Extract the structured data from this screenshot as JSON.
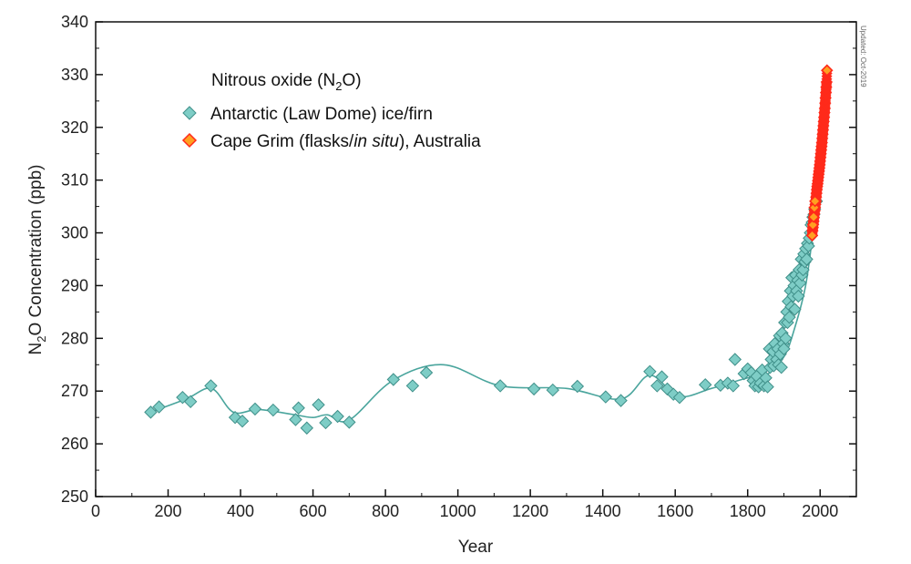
{
  "chart_data": {
    "type": "scatter",
    "title": "Nitrous oxide (N2O)",
    "title_main": "Nitrous oxide (N",
    "title_sub": "2",
    "title_end": "O)",
    "xlabel": "Year",
    "ylabel_main": "N",
    "ylabel_sub": "2",
    "ylabel_end": "O Concentration  (ppb)",
    "xlim": [
      0,
      2100
    ],
    "ylim": [
      250,
      340
    ],
    "xticks": [
      0,
      200,
      400,
      600,
      800,
      1000,
      1200,
      1400,
      1600,
      1800,
      2000
    ],
    "yticks": [
      250,
      260,
      270,
      280,
      290,
      300,
      310,
      320,
      330,
      340
    ],
    "note": "Updated: Oct-2019",
    "legend_position": "top-left",
    "series": [
      {
        "name": "Antarctic (Law Dome) ice/firn",
        "color": "#7ecdc6",
        "edge": "#3f8f89",
        "points": [
          [
            152,
            266
          ],
          [
            175,
            267
          ],
          [
            240,
            268.8
          ],
          [
            262,
            268
          ],
          [
            318,
            271
          ],
          [
            385,
            265
          ],
          [
            405,
            264.3
          ],
          [
            440,
            266.6
          ],
          [
            490,
            266.4
          ],
          [
            552,
            264.6
          ],
          [
            560,
            266.8
          ],
          [
            583,
            263
          ],
          [
            615,
            267.4
          ],
          [
            635,
            264
          ],
          [
            668,
            265.2
          ],
          [
            700,
            264.1
          ],
          [
            822,
            272.2
          ],
          [
            875,
            271
          ],
          [
            913,
            273.5
          ],
          [
            1117,
            271
          ],
          [
            1210,
            270.4
          ],
          [
            1262,
            270.2
          ],
          [
            1330,
            270.9
          ],
          [
            1408,
            268.9
          ],
          [
            1450,
            268.2
          ],
          [
            1530,
            273.7
          ],
          [
            1550,
            271
          ],
          [
            1563,
            272.7
          ],
          [
            1578,
            270.4
          ],
          [
            1595,
            269.4
          ],
          [
            1612,
            268.8
          ],
          [
            1683,
            271.2
          ],
          [
            1725,
            271.1
          ],
          [
            1745,
            271.5
          ],
          [
            1760,
            271
          ],
          [
            1765,
            276
          ],
          [
            1790,
            273.3
          ],
          [
            1800,
            274.2
          ],
          [
            1810,
            273.5
          ],
          [
            1815,
            272
          ],
          [
            1820,
            271
          ],
          [
            1825,
            272.8
          ],
          [
            1830,
            270.8
          ],
          [
            1835,
            271.5
          ],
          [
            1840,
            274
          ],
          [
            1845,
            271
          ],
          [
            1850,
            272.5
          ],
          [
            1855,
            270.8
          ],
          [
            1860,
            278
          ],
          [
            1862,
            274.5
          ],
          [
            1865,
            276
          ],
          [
            1870,
            277.5
          ],
          [
            1872,
            274.8
          ],
          [
            1875,
            279
          ],
          [
            1880,
            276
          ],
          [
            1883,
            278
          ],
          [
            1885,
            275
          ],
          [
            1888,
            280.5
          ],
          [
            1890,
            277
          ],
          [
            1893,
            274.5
          ],
          [
            1895,
            281
          ],
          [
            1898,
            279
          ],
          [
            1900,
            278
          ],
          [
            1902,
            283
          ],
          [
            1905,
            280
          ],
          [
            1908,
            285
          ],
          [
            1910,
            283
          ],
          [
            1912,
            287
          ],
          [
            1915,
            284
          ],
          [
            1918,
            289
          ],
          [
            1920,
            286
          ],
          [
            1922,
            291.5
          ],
          [
            1925,
            288
          ],
          [
            1928,
            290
          ],
          [
            1930,
            285.5
          ],
          [
            1932,
            292
          ],
          [
            1935,
            289
          ],
          [
            1938,
            291
          ],
          [
            1940,
            288
          ],
          [
            1942,
            293
          ],
          [
            1945,
            290.5
          ],
          [
            1948,
            295
          ],
          [
            1950,
            292
          ],
          [
            1953,
            293
          ],
          [
            1955,
            296
          ],
          [
            1958,
            294.5
          ],
          [
            1960,
            297
          ],
          [
            1963,
            295
          ],
          [
            1965,
            298
          ],
          [
            1968,
            297.5
          ],
          [
            1970,
            299
          ],
          [
            1973,
            300
          ],
          [
            1975,
            301.5
          ],
          [
            1978,
            302
          ],
          [
            1980,
            303
          ],
          [
            1983,
            303.5
          ],
          [
            1985,
            304.5
          ],
          [
            1990,
            306
          ]
        ]
      },
      {
        "name_main": "Cape Grim (flasks/",
        "name_italic": "in situ",
        "name_end": "), Australia",
        "name": "Cape Grim (flasks/in situ), Australia",
        "color": "#ff2a1a",
        "accent": "#ffa020",
        "points": [
          [
            1978,
            299.5
          ],
          [
            1979,
            300.4
          ],
          [
            1980,
            301.0
          ],
          [
            1981,
            301.6
          ],
          [
            1982,
            302.2
          ],
          [
            1983,
            302.9
          ],
          [
            1984,
            303.6
          ],
          [
            1985,
            304.2
          ],
          [
            1986,
            304.8
          ],
          [
            1987,
            305.4
          ],
          [
            1988,
            306.0
          ],
          [
            1989,
            306.8
          ],
          [
            1990,
            307.5
          ],
          [
            1991,
            308.2
          ],
          [
            1992,
            308.8
          ],
          [
            1993,
            309.3
          ],
          [
            1994,
            309.9
          ],
          [
            1995,
            310.5
          ],
          [
            1996,
            311.1
          ],
          [
            1997,
            311.7
          ],
          [
            1998,
            312.3
          ],
          [
            1999,
            312.9
          ],
          [
            2000,
            313.6
          ],
          [
            2001,
            314.3
          ],
          [
            2002,
            315.0
          ],
          [
            2003,
            315.7
          ],
          [
            2004,
            316.4
          ],
          [
            2005,
            317.1
          ],
          [
            2006,
            317.9
          ],
          [
            2007,
            318.7
          ],
          [
            2008,
            319.5
          ],
          [
            2009,
            320.3
          ],
          [
            2010,
            321.1
          ],
          [
            2011,
            321.9
          ],
          [
            2012,
            322.8
          ],
          [
            2013,
            323.6
          ],
          [
            2014,
            324.6
          ],
          [
            2015,
            325.6
          ],
          [
            2016,
            326.6
          ],
          [
            2017,
            327.6
          ],
          [
            2018,
            328.6
          ],
          [
            2019,
            330.8
          ]
        ],
        "highlight_points": [
          [
            1978,
            299.5
          ],
          [
            1980,
            301.5
          ],
          [
            1982,
            303
          ],
          [
            1984,
            304.8
          ],
          [
            1986,
            306
          ],
          [
            2019,
            330.8
          ]
        ]
      }
    ],
    "fit_line": {
      "name": "smoothed fit",
      "color": "#4aa59d",
      "points": [
        [
          152,
          266
        ],
        [
          250,
          268.5
        ],
        [
          320,
          270.5
        ],
        [
          380,
          266
        ],
        [
          450,
          266.5
        ],
        [
          550,
          265.5
        ],
        [
          600,
          265
        ],
        [
          640,
          265.5
        ],
        [
          700,
          264.5
        ],
        [
          820,
          272
        ],
        [
          960,
          275
        ],
        [
          1117,
          271
        ],
        [
          1300,
          270.5
        ],
        [
          1450,
          268.5
        ],
        [
          1530,
          273
        ],
        [
          1610,
          269
        ],
        [
          1700,
          270.5
        ],
        [
          1800,
          272.5
        ],
        [
          1850,
          273
        ],
        [
          1900,
          276.5
        ],
        [
          1930,
          282
        ],
        [
          1960,
          290
        ],
        [
          1980,
          300
        ]
      ]
    }
  }
}
